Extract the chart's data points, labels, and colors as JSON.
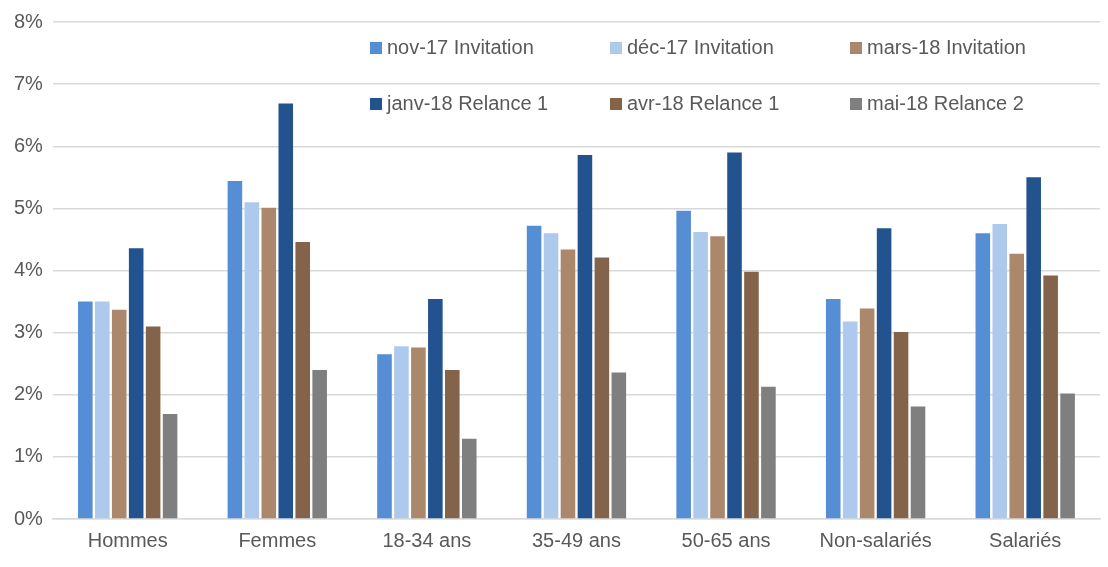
{
  "chart_data": {
    "type": "bar",
    "categories": [
      "Hommes",
      "Femmes",
      "18-34 ans",
      "35-49 ans",
      "50-65 ans",
      "Non-salariés",
      "Salariés"
    ],
    "series": [
      {
        "name": "nov-17 Invitation",
        "color": "#558ed5",
        "values": [
          3.5,
          5.44,
          2.65,
          4.72,
          4.96,
          3.54,
          4.6
        ]
      },
      {
        "name": "déc-17 Invitation",
        "color": "#adc9ec",
        "values": [
          3.5,
          5.1,
          2.78,
          4.6,
          4.62,
          3.18,
          4.75
        ]
      },
      {
        "name": "mars-18 Invitation",
        "color": "#ab886b",
        "values": [
          3.37,
          5.01,
          2.76,
          4.34,
          4.55,
          3.39,
          4.27
        ]
      },
      {
        "name": "janv-18 Relance 1",
        "color": "#23538f",
        "values": [
          4.36,
          6.69,
          3.54,
          5.86,
          5.9,
          4.68,
          5.5
        ]
      },
      {
        "name": "avr-18 Relance 1",
        "color": "#83644b",
        "values": [
          3.1,
          4.46,
          2.4,
          4.21,
          3.98,
          3.01,
          3.92
        ]
      },
      {
        "name": "mai-18 Relance 2",
        "color": "#7f7f7f",
        "values": [
          1.69,
          2.4,
          1.29,
          2.36,
          2.13,
          1.81,
          2.02
        ]
      }
    ],
    "ylim": [
      0,
      8
    ],
    "yticks": [
      {
        "value": 0,
        "label": "0%"
      },
      {
        "value": 1,
        "label": "1%"
      },
      {
        "value": 2,
        "label": "2%"
      },
      {
        "value": 3,
        "label": "3%"
      },
      {
        "value": 4,
        "label": "4%"
      },
      {
        "value": 5,
        "label": "5%"
      },
      {
        "value": 6,
        "label": "6%"
      },
      {
        "value": 7,
        "label": "7%"
      },
      {
        "value": 8,
        "label": "8%"
      }
    ],
    "grid": "y",
    "legend": "top right"
  }
}
